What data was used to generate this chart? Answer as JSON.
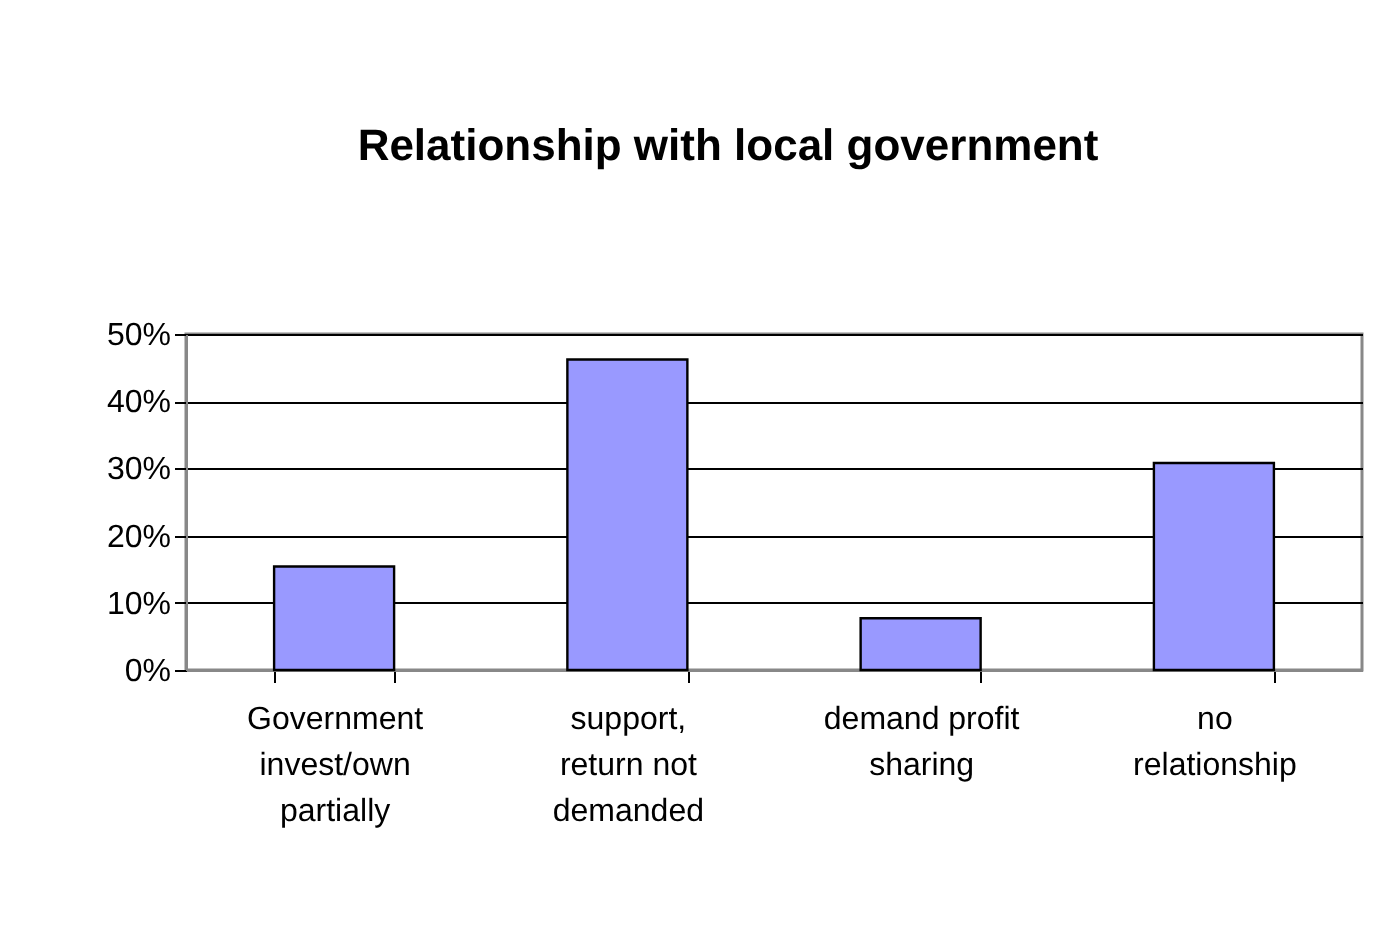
{
  "chart_data": {
    "type": "bar",
    "title": "Relationship with local government",
    "categories": [
      "Government invest/own partially",
      "support, return not demanded",
      "demand profit sharing",
      "no relationship"
    ],
    "values": [
      15.4,
      46.2,
      7.7,
      30.8
    ],
    "color": "#9999ff",
    "ylim": [
      0,
      50
    ],
    "yticks": [
      {
        "value": 0,
        "label": "0%"
      },
      {
        "value": 10,
        "label": "10%"
      },
      {
        "value": 20,
        "label": "20%"
      },
      {
        "value": 30,
        "label": "30%"
      },
      {
        "value": 40,
        "label": "40%"
      },
      {
        "value": 50,
        "label": "50%"
      }
    ],
    "grid": "y"
  }
}
